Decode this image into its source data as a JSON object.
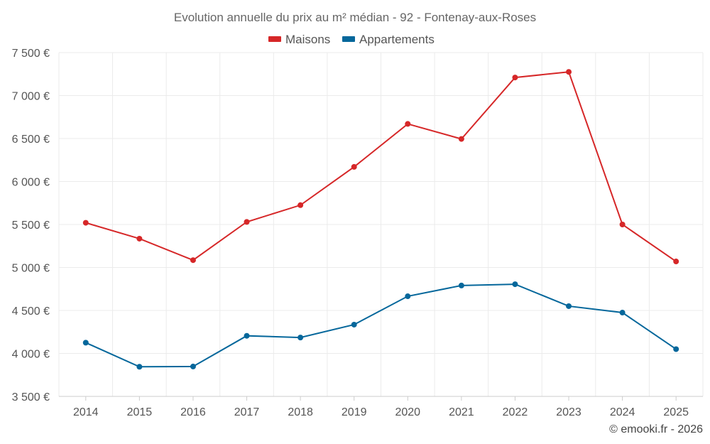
{
  "chart_data": {
    "type": "line",
    "title": "Evolution annuelle du prix au m² médian - 92 - Fontenay-aux-Roses",
    "categories": [
      "2014",
      "2015",
      "2016",
      "2017",
      "2018",
      "2019",
      "2020",
      "2021",
      "2022",
      "2023",
      "2024",
      "2025"
    ],
    "series": [
      {
        "name": "Maisons",
        "color": "#d62728",
        "values": [
          5520,
          5335,
          5085,
          5530,
          5725,
          6170,
          6670,
          6495,
          7210,
          7275,
          5500,
          5070
        ]
      },
      {
        "name": "Appartements",
        "color": "#05679b",
        "values": [
          4125,
          3845,
          3848,
          4205,
          4185,
          4335,
          4665,
          4790,
          4805,
          4550,
          4475,
          4050
        ]
      }
    ],
    "ylim": [
      3500,
      7500
    ],
    "yticks": [
      3500,
      4000,
      4500,
      5000,
      5500,
      6000,
      6500,
      7000,
      7500
    ],
    "ytick_labels": [
      "3 500 €",
      "4 000 €",
      "4 500 €",
      "5 000 €",
      "5 500 €",
      "6 000 €",
      "6 500 €",
      "7 000 €",
      "7 500 €"
    ],
    "xlabel": "",
    "ylabel": "",
    "grid": true,
    "legend_position": "top-center"
  },
  "watermark": "© emooki.fr - 2026"
}
